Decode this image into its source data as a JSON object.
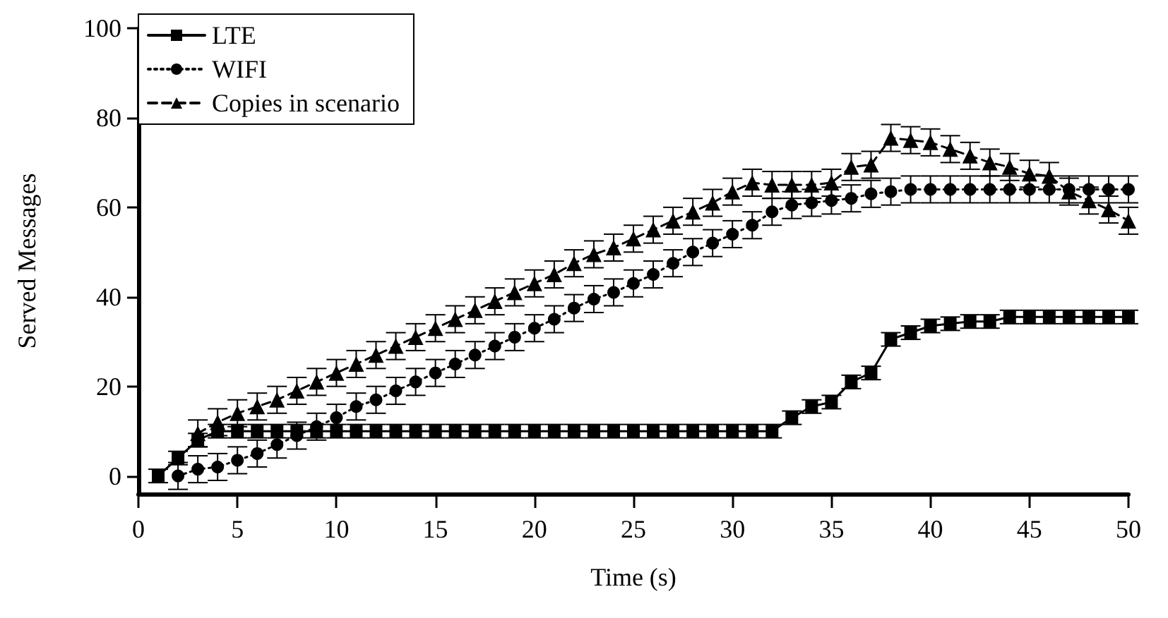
{
  "chart_data": {
    "type": "line",
    "xlabel": "Time (s)",
    "ylabel": "Served Messages",
    "x": [
      1,
      2,
      3,
      4,
      5,
      6,
      7,
      8,
      9,
      10,
      11,
      12,
      13,
      14,
      15,
      16,
      17,
      18,
      19,
      20,
      21,
      22,
      23,
      24,
      25,
      26,
      27,
      28,
      29,
      30,
      31,
      32,
      33,
      34,
      35,
      36,
      37,
      38,
      39,
      40,
      41,
      42,
      43,
      44,
      45,
      46,
      47,
      48,
      49,
      50
    ],
    "xlim": [
      0,
      50
    ],
    "xticks": [
      0,
      5,
      10,
      15,
      20,
      25,
      30,
      35,
      40,
      45,
      50
    ],
    "ylim": [
      -4,
      100
    ],
    "yticks": [
      0,
      20,
      40,
      60,
      80,
      100
    ],
    "grid": false,
    "legend": "top left",
    "series": [
      {
        "name": "LTE",
        "color": "#000000",
        "marker": "square",
        "line_style": "solid",
        "values": [
          0,
          4,
          8,
          10,
          10,
          10,
          10,
          10,
          10,
          10,
          10,
          10,
          10,
          10,
          10,
          10,
          10,
          10,
          10,
          10,
          10,
          10,
          10,
          10,
          10,
          10,
          10,
          10,
          10,
          10,
          10,
          10,
          13,
          15.5,
          16.5,
          21,
          23,
          30.5,
          32,
          33.5,
          34,
          34.5,
          34.5,
          35.5,
          35.5,
          35.5,
          35.5,
          35.5,
          35.5,
          35.5
        ],
        "errors": [
          1.5,
          1.5,
          1.5,
          1.5,
          1.5,
          1.5,
          1.5,
          1.5,
          1.5,
          1.5,
          1.5,
          1.5,
          1.5,
          1.5,
          1.5,
          1.5,
          1.5,
          1.5,
          1.5,
          1.5,
          1.5,
          1.5,
          1.5,
          1.5,
          1.5,
          1.5,
          1.5,
          1.5,
          1.5,
          1.5,
          1.5,
          1.5,
          1.5,
          1.5,
          1.5,
          1.5,
          1.5,
          1.5,
          1.5,
          1.5,
          1.5,
          1.5,
          1.5,
          1.5,
          1.5,
          1.5,
          1.5,
          1.5,
          1.5,
          1.5
        ]
      },
      {
        "name": "WIFI",
        "color": "#000000",
        "marker": "circle",
        "line_style": "dotted",
        "values": [
          null,
          0,
          1.5,
          2,
          3.5,
          5,
          7,
          9,
          11,
          13,
          15.5,
          17,
          19,
          21,
          23,
          25,
          27,
          29,
          31,
          33,
          35,
          37.5,
          39.5,
          41,
          43,
          45,
          47.5,
          50,
          52,
          54,
          56,
          59,
          60.5,
          61,
          61.5,
          62,
          63,
          63.5,
          64,
          64,
          64,
          64,
          64,
          64,
          64,
          64,
          64,
          64,
          64,
          64
        ],
        "errors": [
          null,
          3,
          3,
          3,
          3,
          3,
          3,
          3,
          3,
          3,
          3,
          3,
          3,
          3,
          3,
          3,
          3,
          3,
          3,
          3,
          3,
          3,
          3,
          3,
          3,
          3,
          3,
          3,
          3,
          3,
          3,
          3,
          3,
          3,
          3,
          3,
          3,
          3,
          3,
          3,
          3,
          3,
          3,
          3,
          3,
          3,
          3,
          3,
          3,
          3
        ]
      },
      {
        "name": "Copies in scenario",
        "color": "#000000",
        "marker": "triangle",
        "line_style": "dashed",
        "values": [
          null,
          null,
          9.5,
          12,
          14,
          15.5,
          17,
          19,
          21,
          23,
          25,
          27,
          29,
          31,
          33,
          35,
          37,
          39,
          41,
          43,
          45,
          47.5,
          49.5,
          51,
          53,
          55,
          57,
          59,
          61,
          63.5,
          65.5,
          65,
          65,
          65,
          65.5,
          69,
          69.5,
          75.5,
          75,
          74.5,
          73,
          71.5,
          70,
          69,
          67.5,
          67,
          63.5,
          61.5,
          59.5,
          57
        ],
        "errors": [
          null,
          null,
          3,
          3,
          3,
          3,
          3,
          3,
          3,
          3,
          3,
          3,
          3,
          3,
          3,
          3,
          3,
          3,
          3,
          3,
          3,
          3,
          3,
          3,
          3,
          3,
          3,
          3,
          3,
          3,
          3,
          3,
          3,
          3,
          3,
          3,
          3,
          3,
          3,
          3,
          3,
          3,
          3,
          3,
          3,
          3,
          3,
          3,
          3,
          3
        ]
      }
    ]
  }
}
